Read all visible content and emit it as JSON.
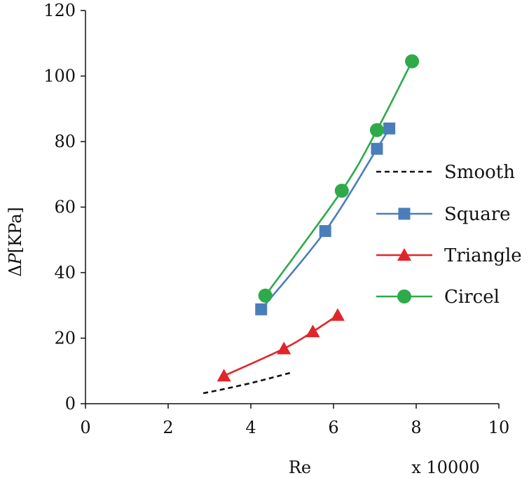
{
  "chart_data": {
    "type": "line",
    "xlabel": "Re",
    "x_multiplier": "x 10000",
    "ylabel_symbol": "Δ",
    "ylabel_var": "P",
    "ylabel_unit": "[KPa]",
    "xlim": [
      0,
      10
    ],
    "ylim": [
      0,
      120
    ],
    "x_ticks": [
      "0",
      "2",
      "4",
      "6",
      "8",
      "10"
    ],
    "y_ticks": [
      "0",
      "20",
      "40",
      "60",
      "80",
      "100",
      "120"
    ],
    "grid": false,
    "legend_position": "right",
    "series": [
      {
        "name": "Smooth",
        "style": "dashed",
        "marker": "none",
        "color": "#111111",
        "x": [
          2.85,
          3.4,
          4.0,
          4.5,
          4.95
        ],
        "y": [
          3.2,
          4.6,
          6.3,
          7.9,
          9.4
        ]
      },
      {
        "name": "Square",
        "style": "solid",
        "marker": "square",
        "color": "#4a7ebb",
        "x": [
          4.25,
          5.8,
          7.05,
          7.35
        ],
        "y": [
          28.8,
          52.7,
          77.8,
          84.0
        ]
      },
      {
        "name": "Triangle",
        "style": "solid",
        "marker": "triangle",
        "color": "#e0262a",
        "x": [
          3.35,
          4.8,
          5.5,
          6.1
        ],
        "y": [
          8.5,
          16.8,
          22.0,
          27.0
        ]
      },
      {
        "name": "Circel",
        "style": "solid",
        "marker": "circle",
        "color": "#2eaa4a",
        "x": [
          4.35,
          6.2,
          7.05,
          7.9
        ],
        "y": [
          33.0,
          65.0,
          83.5,
          104.5
        ]
      }
    ]
  }
}
